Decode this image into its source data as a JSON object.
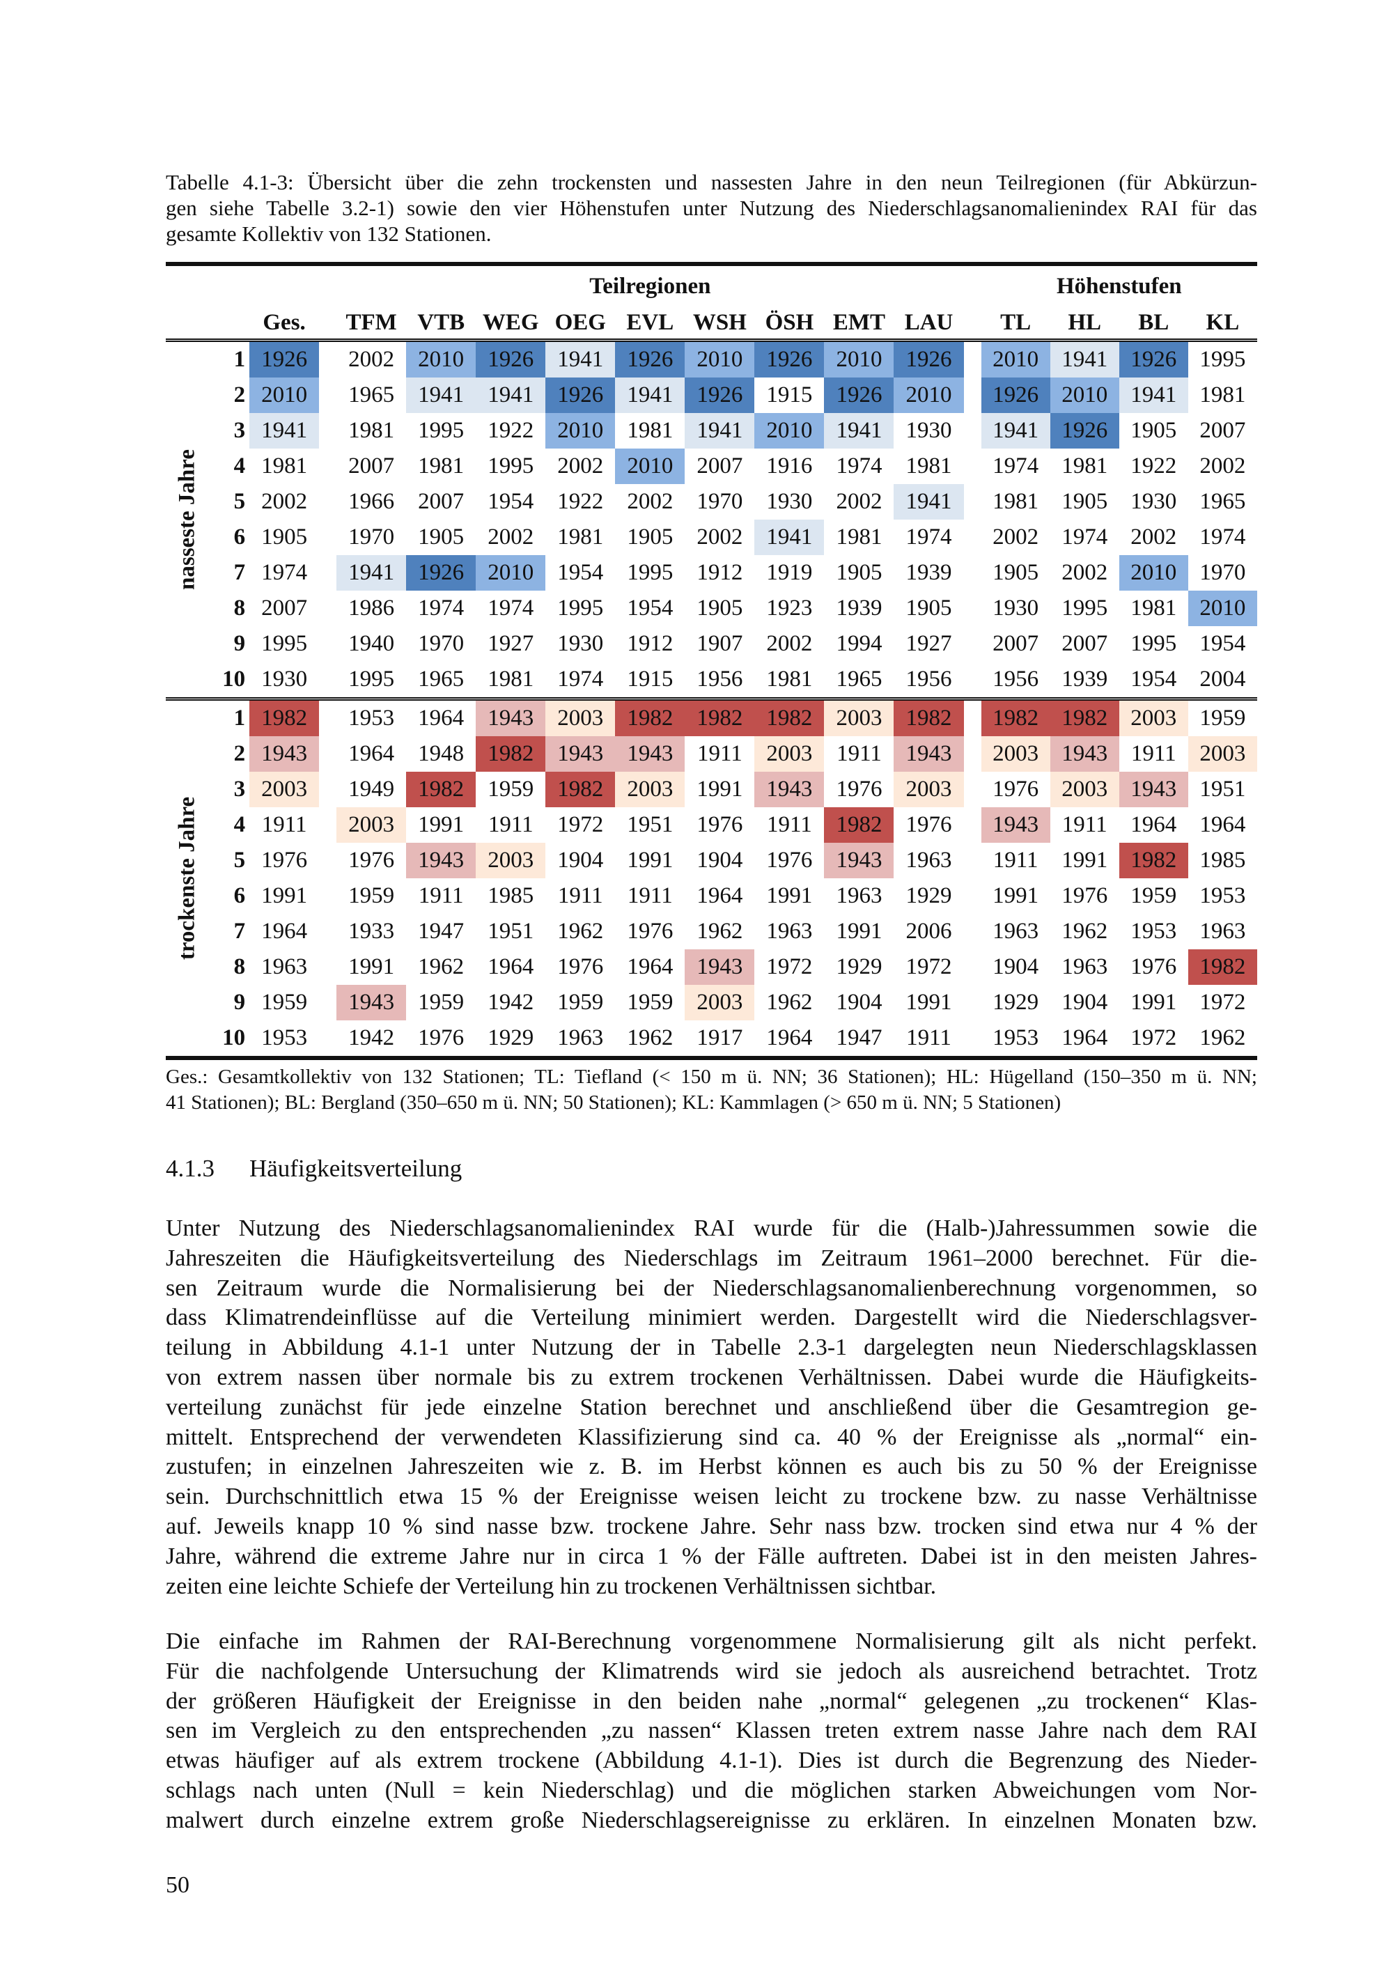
{
  "caption_lines": [
    "Tabelle 4.1-3: Übersicht über die zehn trockensten und nassesten Jahre in den neun Teilregionen (für Abkürzun-",
    "gen siehe Tabelle 3.2-1) sowie den vier Höhenstufen unter Nutzung des Niederschlagsanomalienindex RAI für das",
    "gesamte Kollektiv von 132 Stationen."
  ],
  "table": {
    "group_teilregionen": "Teilregionen",
    "group_hoehenstufen": "Höhenstufen",
    "columns": [
      "Ges.",
      "TFM",
      "VTB",
      "WEG",
      "OEG",
      "EVL",
      "WSH",
      "ÖSH",
      "EMT",
      "LAU",
      "TL",
      "HL",
      "BL",
      "KL"
    ],
    "sections": [
      {
        "label": "nasseste Jahre",
        "highlight": {
          "1926": "#4f81bd",
          "2010": "#8db3e2",
          "1941": "#dce6f1"
        },
        "rows": [
          [
            "1",
            "1926",
            "2002",
            "2010",
            "1926",
            "1941",
            "1926",
            "2010",
            "1926",
            "2010",
            "1926",
            "2010",
            "1941",
            "1926",
            "1995"
          ],
          [
            "2",
            "2010",
            "1965",
            "1941",
            "1941",
            "1926",
            "1941",
            "1926",
            "1915",
            "1926",
            "2010",
            "1926",
            "2010",
            "1941",
            "1981"
          ],
          [
            "3",
            "1941",
            "1981",
            "1995",
            "1922",
            "2010",
            "1981",
            "1941",
            "2010",
            "1941",
            "1930",
            "1941",
            "1926",
            "1905",
            "2007"
          ],
          [
            "4",
            "1981",
            "2007",
            "1981",
            "1995",
            "2002",
            "2010",
            "2007",
            "1916",
            "1974",
            "1981",
            "1974",
            "1981",
            "1922",
            "2002"
          ],
          [
            "5",
            "2002",
            "1966",
            "2007",
            "1954",
            "1922",
            "2002",
            "1970",
            "1930",
            "2002",
            "1941",
            "1981",
            "1905",
            "1930",
            "1965"
          ],
          [
            "6",
            "1905",
            "1970",
            "1905",
            "2002",
            "1981",
            "1905",
            "2002",
            "1941",
            "1981",
            "1974",
            "2002",
            "1974",
            "2002",
            "1974"
          ],
          [
            "7",
            "1974",
            "1941",
            "1926",
            "2010",
            "1954",
            "1995",
            "1912",
            "1919",
            "1905",
            "1939",
            "1905",
            "2002",
            "2010",
            "1970"
          ],
          [
            "8",
            "2007",
            "1986",
            "1974",
            "1974",
            "1995",
            "1954",
            "1905",
            "1923",
            "1939",
            "1905",
            "1930",
            "1995",
            "1981",
            "2010"
          ],
          [
            "9",
            "1995",
            "1940",
            "1970",
            "1927",
            "1930",
            "1912",
            "1907",
            "2002",
            "1994",
            "1927",
            "2007",
            "2007",
            "1995",
            "1954"
          ],
          [
            "10",
            "1930",
            "1995",
            "1965",
            "1981",
            "1974",
            "1915",
            "1956",
            "1981",
            "1965",
            "1956",
            "1956",
            "1939",
            "1954",
            "2004"
          ]
        ]
      },
      {
        "label": "trockenste Jahre",
        "highlight": {
          "1982": "#c0504d",
          "1943": "#e6b9b8",
          "2003": "#fde9d9"
        },
        "rows": [
          [
            "1",
            "1982",
            "1953",
            "1964",
            "1943",
            "2003",
            "1982",
            "1982",
            "1982",
            "2003",
            "1982",
            "1982",
            "1982",
            "2003",
            "1959"
          ],
          [
            "2",
            "1943",
            "1964",
            "1948",
            "1982",
            "1943",
            "1943",
            "1911",
            "2003",
            "1911",
            "1943",
            "2003",
            "1943",
            "1911",
            "2003"
          ],
          [
            "3",
            "2003",
            "1949",
            "1982",
            "1959",
            "1982",
            "2003",
            "1991",
            "1943",
            "1976",
            "2003",
            "1976",
            "2003",
            "1943",
            "1951"
          ],
          [
            "4",
            "1911",
            "2003",
            "1991",
            "1911",
            "1972",
            "1951",
            "1976",
            "1911",
            "1982",
            "1976",
            "1943",
            "1911",
            "1964",
            "1964"
          ],
          [
            "5",
            "1976",
            "1976",
            "1943",
            "2003",
            "1904",
            "1991",
            "1904",
            "1976",
            "1943",
            "1963",
            "1911",
            "1991",
            "1982",
            "1985"
          ],
          [
            "6",
            "1991",
            "1959",
            "1911",
            "1985",
            "1911",
            "1911",
            "1964",
            "1991",
            "1963",
            "1929",
            "1991",
            "1976",
            "1959",
            "1953"
          ],
          [
            "7",
            "1964",
            "1933",
            "1947",
            "1951",
            "1962",
            "1976",
            "1962",
            "1963",
            "1991",
            "2006",
            "1963",
            "1962",
            "1953",
            "1963"
          ],
          [
            "8",
            "1963",
            "1991",
            "1962",
            "1964",
            "1976",
            "1964",
            "1943",
            "1972",
            "1929",
            "1972",
            "1904",
            "1963",
            "1976",
            "1982"
          ],
          [
            "9",
            "1959",
            "1943",
            "1959",
            "1942",
            "1959",
            "1959",
            "2003",
            "1962",
            "1904",
            "1991",
            "1929",
            "1904",
            "1991",
            "1972"
          ],
          [
            "10",
            "1953",
            "1942",
            "1976",
            "1929",
            "1963",
            "1962",
            "1917",
            "1964",
            "1947",
            "1911",
            "1953",
            "1964",
            "1972",
            "1962"
          ]
        ]
      }
    ]
  },
  "footnote_lines": [
    "Ges.: Gesamtkollektiv von 132 Stationen; TL: Tiefland (< 150 m ü. NN; 36 Stationen); HL: Hügelland (150–350 m ü. NN;",
    "41 Stationen); BL: Bergland (350–650 m ü. NN; 50 Stationen); KL: Kammlagen (> 650 m ü. NN; 5 Stationen)"
  ],
  "section_number": "4.1.3",
  "section_title": "Häufigkeitsverteilung",
  "paragraph1_lines": [
    "Unter Nutzung des Niederschlagsanomalienindex RAI wurde für die (Halb-)Jahressummen sowie die",
    "Jahreszeiten die Häufigkeitsverteilung des Niederschlags im Zeitraum 1961–2000 berechnet. Für die-",
    "sen Zeitraum wurde die Normalisierung bei der Niederschlagsanomalienberechnung vorgenommen, so",
    "dass Klimatrendeinflüsse auf die Verteilung minimiert werden. Dargestellt wird die Niederschlagsver-",
    "teilung in Abbildung 4.1-1 unter Nutzung der in Tabelle 2.3-1 dargelegten neun Niederschlagsklassen",
    "von extrem nassen über normale bis zu extrem trockenen Verhältnissen. Dabei wurde die Häufigkeits-",
    "verteilung zunächst für jede einzelne Station berechnet und anschließend über die Gesamtregion ge-",
    "mittelt. Entsprechend der verwendeten Klassifizierung sind ca. 40 % der Ereignisse als „normal“ ein-",
    "zustufen; in einzelnen Jahreszeiten wie z. B. im Herbst können es auch bis zu 50 % der Ereignisse",
    "sein. Durchschnittlich etwa 15 % der Ereignisse weisen leicht zu trockene bzw. zu nasse Verhältnisse",
    "auf. Jeweils knapp 10 % sind nasse bzw. trockene Jahre. Sehr nass bzw. trocken sind etwa nur 4 % der",
    "Jahre, während die extreme Jahre nur in circa 1 % der Fälle auftreten. Dabei ist in den meisten Jahres-",
    "zeiten eine leichte Schiefe der Verteilung hin zu trockenen Verhältnissen sichtbar."
  ],
  "paragraph2_lines": [
    "Die einfache im Rahmen der RAI-Berechnung vorgenommene Normalisierung gilt als nicht perfekt.",
    "Für die nachfolgende Untersuchung der Klimatrends wird sie jedoch als ausreichend betrachtet. Trotz",
    "der größeren Häufigkeit der Ereignisse in den beiden nahe „normal“ gelegenen „zu trockenen“ Klas-",
    "sen im Vergleich zu den entsprechenden „zu nassen“ Klassen treten extrem nasse Jahre nach dem RAI",
    "etwas häufiger auf als extrem trockene (Abbildung 4.1-1). Dies ist durch die Begrenzung des Nieder-",
    "schlags nach unten (Null = kein Niederschlag) und die möglichen starken Abweichungen vom Nor-",
    "malwert durch einzelne extrem große Niederschlagsereignisse zu erklären. In einzelnen Monaten bzw."
  ],
  "page_number": "50"
}
